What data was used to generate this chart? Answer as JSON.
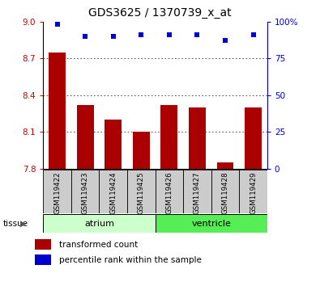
{
  "title": "GDS3625 / 1370739_x_at",
  "samples": [
    "GSM119422",
    "GSM119423",
    "GSM119424",
    "GSM119425",
    "GSM119426",
    "GSM119427",
    "GSM119428",
    "GSM119429"
  ],
  "transformed_counts": [
    8.75,
    8.32,
    8.2,
    8.1,
    8.32,
    8.3,
    7.85,
    8.3
  ],
  "percentile_ranks": [
    98,
    90,
    90,
    91,
    91,
    91,
    87,
    91
  ],
  "ylim_left": [
    7.8,
    9.0
  ],
  "yticks_left": [
    7.8,
    8.1,
    8.4,
    8.7,
    9.0
  ],
  "ylim_right": [
    0,
    100
  ],
  "yticks_right": [
    0,
    25,
    50,
    75,
    100
  ],
  "yticklabels_right": [
    "0",
    "25",
    "50",
    "75",
    "100%"
  ],
  "bar_color": "#AA0000",
  "dot_color": "#0000CC",
  "left_tick_color": "#CC0000",
  "right_tick_color": "#0000CC",
  "atrium_label": "atrium",
  "ventricle_label": "ventricle",
  "tissue_label": "tissue",
  "legend_bar_label": "transformed count",
  "legend_dot_label": "percentile rank within the sample",
  "tissue_atrium_color": "#ccffcc",
  "tissue_ventricle_color": "#55ee55",
  "xticklabel_bg": "#cccccc",
  "grid_color": "#333333",
  "spine_color": "#000000"
}
